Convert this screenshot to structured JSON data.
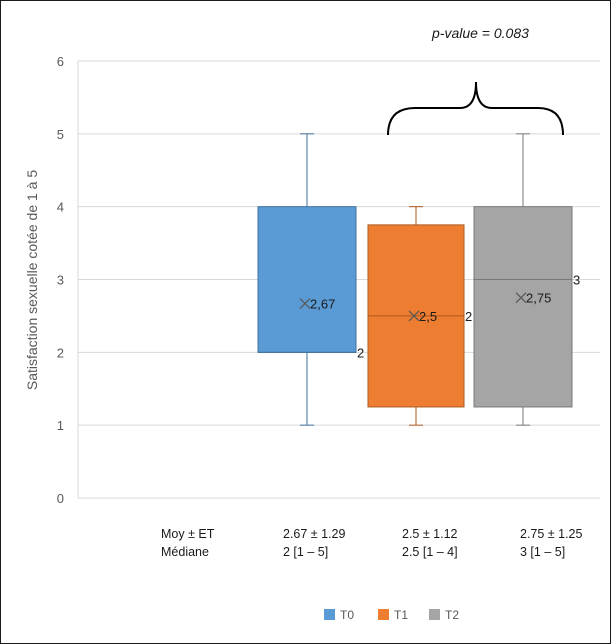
{
  "chart_data": {
    "type": "box",
    "ylabel": "Satisfaction sexuelle cotée de 1 à 5",
    "ylim": [
      0,
      6
    ],
    "yticks": [
      "0",
      "1",
      "2",
      "3",
      "4",
      "5",
      "6"
    ],
    "grid": true,
    "legend_position": "bottom",
    "annotation": "p-value = 0.083",
    "series": [
      {
        "name": "T0",
        "color": "#5b9bd5",
        "stroke": "#41719c",
        "min": 1,
        "q1": 2,
        "median": 2,
        "q3": 4,
        "max": 5,
        "mean": 2.67,
        "mean_label": "2,67",
        "median_label": "2"
      },
      {
        "name": "T1",
        "color": "#ed7d31",
        "stroke": "#ae5a21",
        "min": 1,
        "q1": 1.25,
        "median": 2.5,
        "q3": 3.75,
        "max": 4,
        "mean": 2.5,
        "mean_label": "2,5",
        "median_label": "2,5"
      },
      {
        "name": "T2",
        "color": "#a5a5a5",
        "stroke": "#787878",
        "min": 1,
        "q1": 1.25,
        "median": 3,
        "q3": 4,
        "max": 5,
        "mean": 2.75,
        "mean_label": "2,75",
        "median_label": "3"
      }
    ],
    "stats_labels": {
      "mean_sd": "Moy ± ET",
      "median": "Médiane"
    },
    "stats": [
      {
        "mean_sd": "2.67 ± 1.29",
        "median": "2 [1 – 5]"
      },
      {
        "mean_sd": "2.5 ± 1.12",
        "median": "2.5 [1 – 4]"
      },
      {
        "mean_sd": "2.75 ± 1.25",
        "median": "3 [1 – 5]"
      }
    ]
  }
}
